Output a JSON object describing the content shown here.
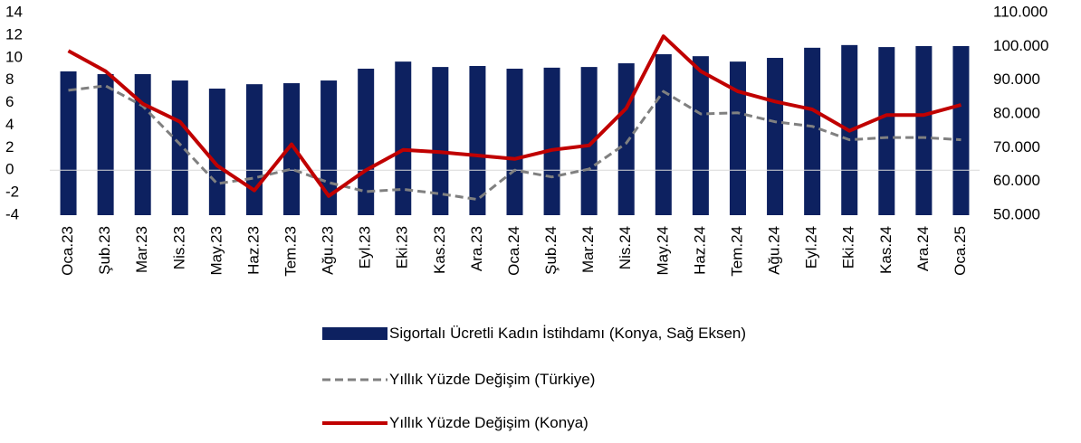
{
  "chart_data": {
    "type": "bar",
    "categories": [
      "Oca.23",
      "Şub.23",
      "Mar.23",
      "Nis.23",
      "May.23",
      "Haz.23",
      "Tem.23",
      "Ağu.23",
      "Eyl.23",
      "Eki.23",
      "Kas.23",
      "Ara.23",
      "Oca.24",
      "Şub.24",
      "Mar.24",
      "Nis.24",
      "May.24",
      "Haz.24",
      "Tem.24",
      "Ağu.24",
      "Eyl.24",
      "Eki.24",
      "Kas.24",
      "Ara.24",
      "Oca.25"
    ],
    "series": [
      {
        "name": "Sigortalı Ücretli Kadın İstihdamı (Konya, Sağ Eksen)",
        "type": "bar",
        "axis": "y2",
        "color": "#0d2160",
        "values": [
          92600,
          91800,
          91800,
          89900,
          87500,
          88800,
          89100,
          89900,
          93400,
          95500,
          93900,
          94200,
          93400,
          93700,
          93900,
          95000,
          97700,
          97100,
          95500,
          96600,
          99600,
          100400,
          99800,
          100100,
          100100
        ]
      },
      {
        "name": "Yıllık Yüzde Değişim (Türkiye)",
        "type": "line",
        "dash": true,
        "color": "#808080",
        "values": [
          7.1,
          7.5,
          5.7,
          2.3,
          -1.2,
          -0.7,
          0.1,
          -1.1,
          -1.9,
          -1.7,
          -2.1,
          -2.6,
          0,
          -0.6,
          0.1,
          2.4,
          7.0,
          5.0,
          5.1,
          4.3,
          3.9,
          2.7,
          2.9,
          2.9,
          2.7
        ]
      },
      {
        "name": "Yıllık Yüzde Değişim (Konya)",
        "type": "line",
        "dash": false,
        "color": "#c00000",
        "values": [
          10.6,
          8.8,
          5.9,
          4.3,
          0.4,
          -1.8,
          2.3,
          -2.3,
          0,
          1.8,
          1.6,
          1.3,
          1.0,
          1.8,
          2.2,
          5.5,
          11.9,
          8.8,
          7.0,
          6.1,
          5.4,
          3.5,
          4.9,
          4.9,
          5.8
        ]
      }
    ],
    "ylim": [
      -4,
      14
    ],
    "yticks": [
      -4,
      -2,
      0,
      2,
      4,
      6,
      8,
      10,
      12,
      14
    ],
    "y2lim": [
      50000,
      110000
    ],
    "y2ticks": [
      {
        "value": 50000,
        "label": "50.000"
      },
      {
        "value": 60000,
        "label": "60.000"
      },
      {
        "value": 70000,
        "label": "70.000"
      },
      {
        "value": 80000,
        "label": "80.000"
      },
      {
        "value": 90000,
        "label": "90.000"
      },
      {
        "value": 100000,
        "label": "100.000"
      },
      {
        "value": 110000,
        "label": "110.000"
      }
    ],
    "grid": false,
    "legend": "bottom"
  }
}
